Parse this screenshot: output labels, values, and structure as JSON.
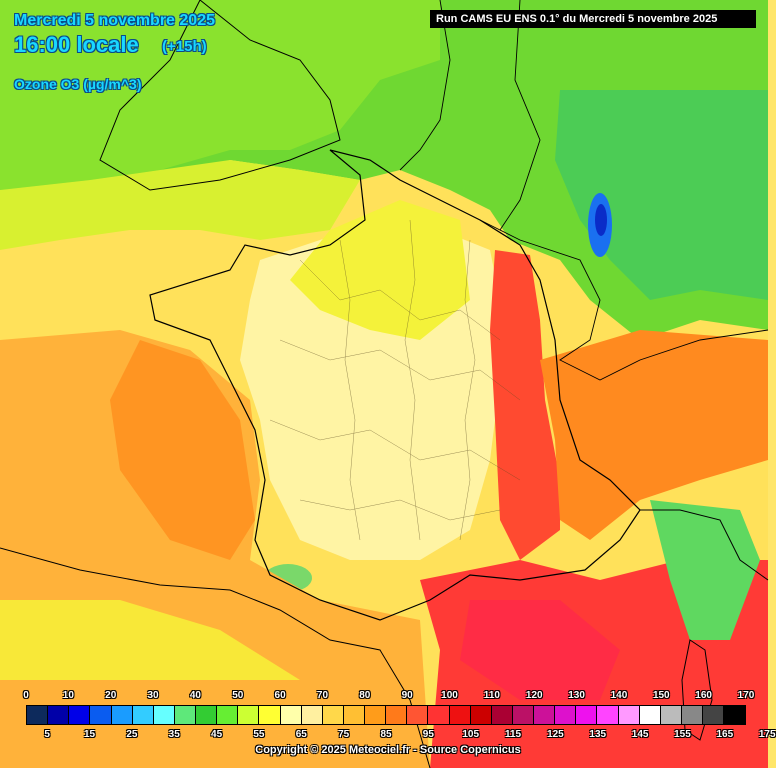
{
  "header": {
    "date": "Mercredi 5 novembre 2025",
    "time": "16:00 locale",
    "offset": "(+15h)",
    "variable": "Ozone O3 (µg/m^3)"
  },
  "run_info": "Run CAMS EU ENS 0.1° du Mercredi 5 novembre 2025",
  "legend": {
    "top_labels": [
      "0",
      "10",
      "20",
      "30",
      "40",
      "50",
      "60",
      "70",
      "80",
      "90",
      "100",
      "110",
      "120",
      "130",
      "140",
      "150",
      "160",
      "170"
    ],
    "bottom_labels": [
      "5",
      "15",
      "25",
      "35",
      "45",
      "55",
      "65",
      "75",
      "85",
      "95",
      "105",
      "115",
      "125",
      "135",
      "145",
      "155",
      "165",
      "175"
    ],
    "colors": [
      "#0d2a5c",
      "#0000a8",
      "#0000e8",
      "#0a5cf0",
      "#1a9cff",
      "#33ccff",
      "#66ffff",
      "#5ee87a",
      "#33cc33",
      "#66ee33",
      "#ccff33",
      "#ffff33",
      "#ffffaa",
      "#fff0a0",
      "#ffd84a",
      "#ffbf33",
      "#ff9c1a",
      "#ff7a1a",
      "#ff5533",
      "#ff3333",
      "#ee1111",
      "#cc0000",
      "#aa0033",
      "#bb1166",
      "#cc1199",
      "#dd11cc",
      "#ee11ee",
      "#ff44ff",
      "#ff99ff",
      "#ffffff",
      "#bbbbbb",
      "#888888",
      "#444444",
      "#000000"
    ]
  },
  "copyright": "Copyright © 2025 Meteociel.fr - Source Copernicus"
}
